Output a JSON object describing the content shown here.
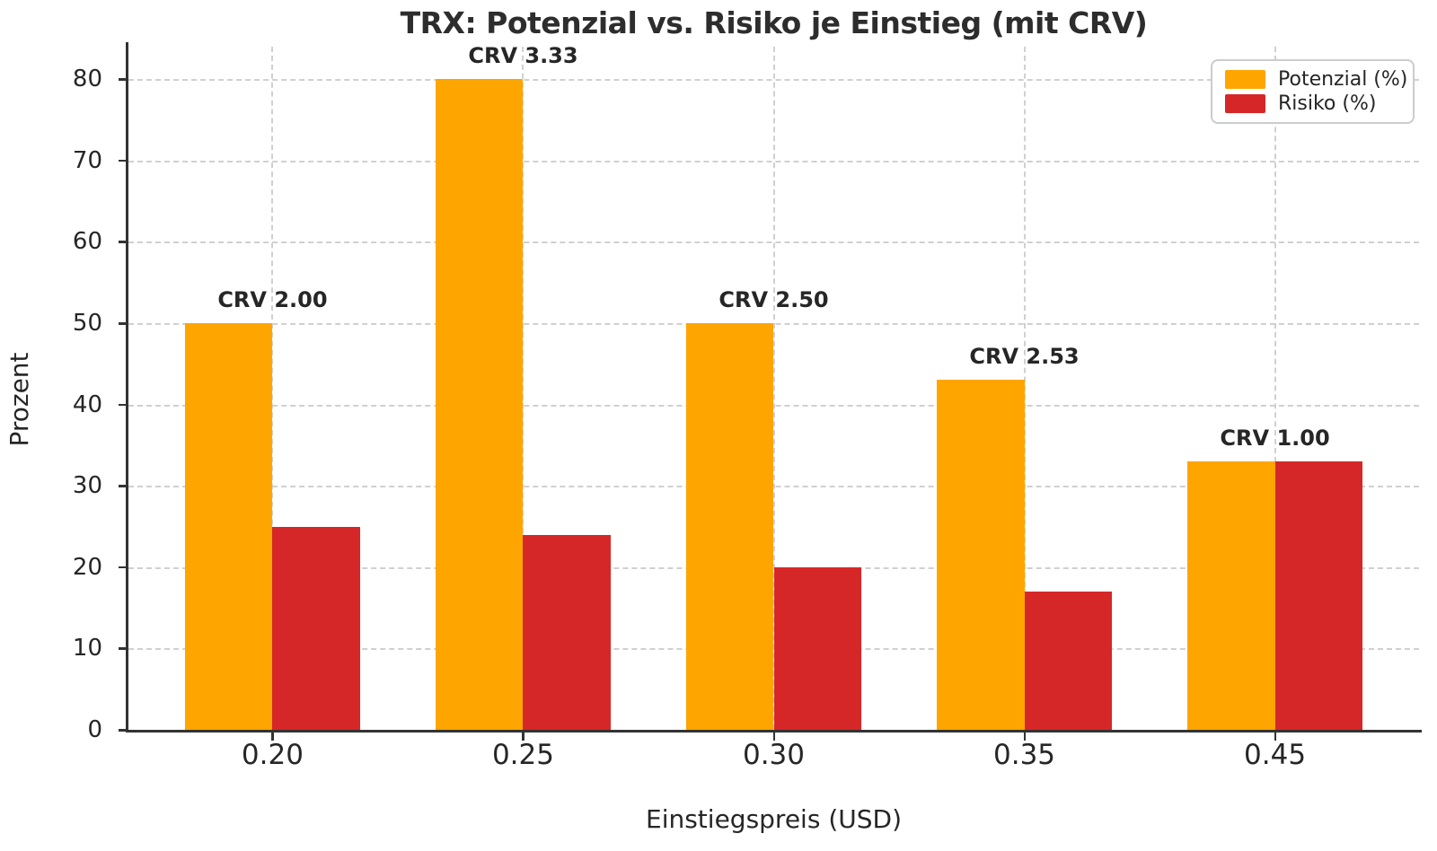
{
  "chart_data": {
    "type": "bar",
    "title": "TRX: Potenzial vs. Risiko je Einstieg (mit CRV)",
    "xlabel": "Einstiegspreis (USD)",
    "ylabel": "Prozent",
    "categories": [
      "0.20",
      "0.25",
      "0.30",
      "0.35",
      "0.45"
    ],
    "series": [
      {
        "name": "Potenzial (%)",
        "color": "#FFA500",
        "values": [
          50,
          80,
          50,
          43,
          33
        ]
      },
      {
        "name": "Risiko (%)",
        "color": "#D62728",
        "values": [
          25,
          24,
          20,
          17,
          33
        ]
      }
    ],
    "annotations": [
      "CRV 2.00",
      "CRV 3.33",
      "CRV 2.50",
      "CRV 2.53",
      "CRV 1.00"
    ],
    "yticks": [
      0,
      10,
      20,
      30,
      40,
      50,
      60,
      70,
      80
    ],
    "ylim": [
      0,
      84
    ],
    "grid": true,
    "grid_style": "dashed",
    "legend_position": "upper right",
    "colors": {
      "grid": "#d0d0d0",
      "axis": "#333333",
      "text": "#262626"
    }
  }
}
